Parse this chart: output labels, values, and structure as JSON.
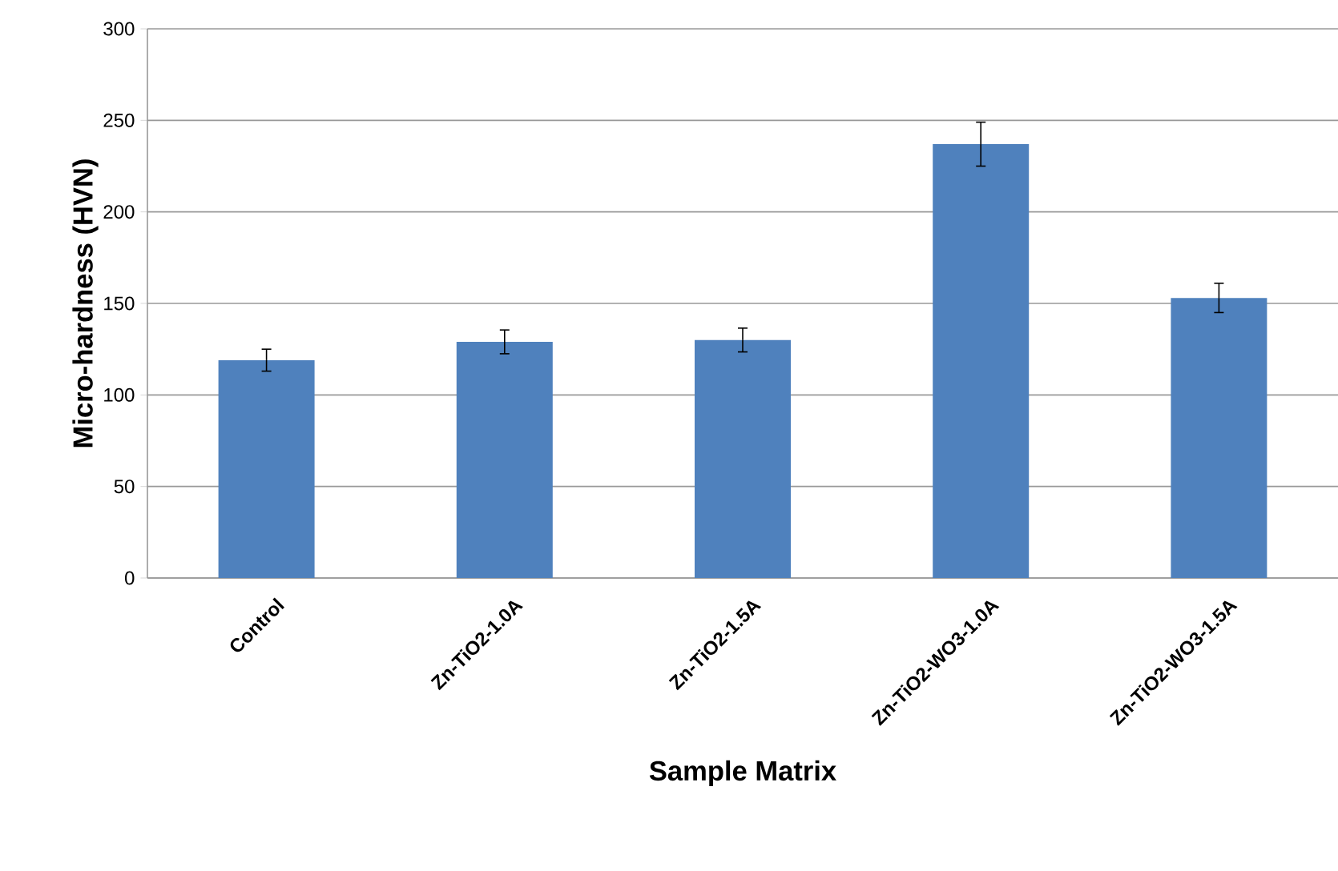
{
  "chart_data": {
    "type": "bar",
    "xlabel": "Sample Matrix",
    "ylabel": "Micro-hardness (HVN)",
    "categories": [
      "Control",
      "Zn-TiO2-1.0A",
      "Zn-TiO2-1.5A",
      "Zn-TiO2-WO3-1.0A",
      "Zn-TiO2-WO3-1.5A"
    ],
    "values": [
      119,
      129,
      130,
      237,
      153
    ],
    "errors": [
      6,
      6.5,
      6.5,
      12,
      8
    ],
    "color": "#4f81bd",
    "ylim": [
      0,
      300
    ],
    "yticks": [
      0,
      50,
      100,
      150,
      200,
      250,
      300
    ],
    "grid": "y"
  }
}
